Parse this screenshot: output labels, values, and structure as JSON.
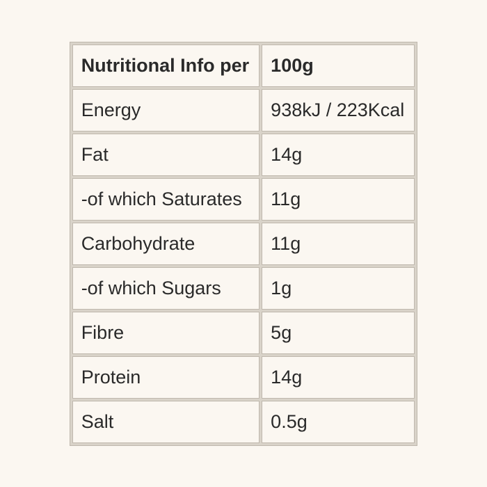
{
  "table": {
    "type": "table",
    "background_color": "#fbf7f1",
    "border_color": "#bfb8ad",
    "cell_spacing_color": "#d9d3c9",
    "font_size_pt": 20,
    "text_color": "#2a2a2a",
    "header": {
      "label": "Nutritional Info per",
      "value": "100g"
    },
    "rows": [
      {
        "label": "Energy",
        "value": "938kJ / 223Kcal"
      },
      {
        "label": "Fat",
        "value": "14g"
      },
      {
        "label": "-of which Saturates",
        "value": "11g"
      },
      {
        "label": "Carbohydrate",
        "value": "11g"
      },
      {
        "label": "-of which Sugars",
        "value": "1g"
      },
      {
        "label": "Fibre",
        "value": "5g"
      },
      {
        "label": "Protein",
        "value": "14g"
      },
      {
        "label": "Salt",
        "value": "0.5g"
      }
    ]
  }
}
